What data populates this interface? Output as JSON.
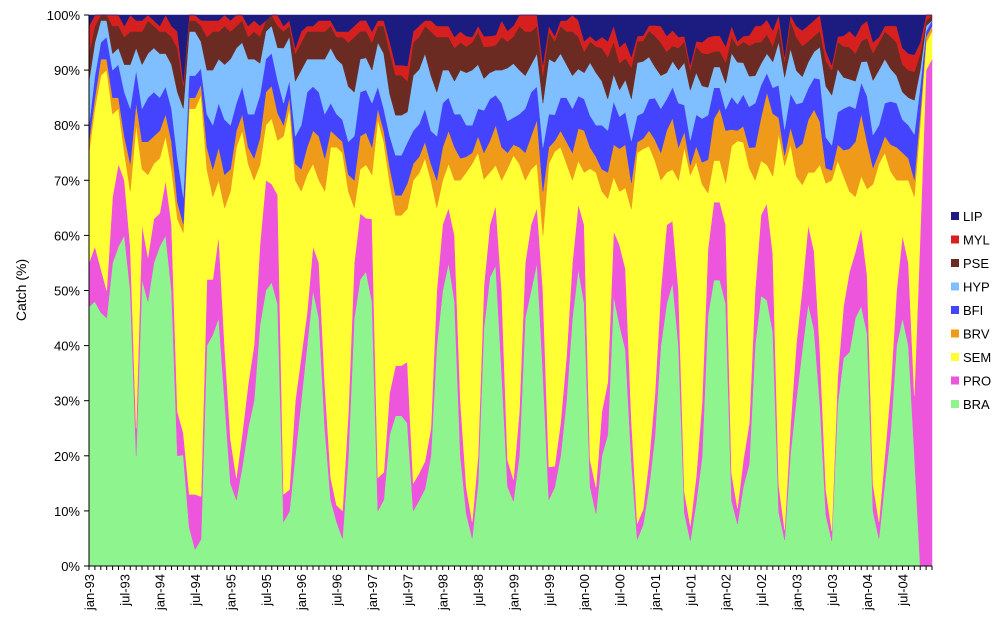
{
  "chart_data": {
    "type": "area",
    "stacking": "percent",
    "title": "",
    "xlabel": "",
    "ylabel": "Catch (%)",
    "ylim": [
      0,
      100
    ],
    "yticks": [
      "0%",
      "10%",
      "20%",
      "30%",
      "40%",
      "50%",
      "60%",
      "70%",
      "80%",
      "90%",
      "100%"
    ],
    "x_start": "jan-93",
    "x_end": "dec-04",
    "xticks": [
      "jan-93",
      "jul-93",
      "jan-94",
      "jul-94",
      "jan-95",
      "jul-95",
      "jan-96",
      "jul-96",
      "jan-97",
      "jul-97",
      "jan-98",
      "jul-98",
      "jan-99",
      "jul-99",
      "jan-00",
      "jul-00",
      "jan-01",
      "jul-01",
      "jan-02",
      "jul-02",
      "jan-03",
      "jul-03",
      "jan-04",
      "jul-04"
    ],
    "grid": false,
    "legend_position": "right",
    "legend_order": [
      "LIP",
      "MYL",
      "PSE",
      "HYP",
      "BFI",
      "BRV",
      "SEM",
      "PRO",
      "BRA"
    ],
    "series": [
      {
        "name": "BRA",
        "color": "#8EF58E",
        "values": [
          47,
          48,
          46,
          45,
          55,
          58,
          60,
          50,
          20,
          52,
          48,
          55,
          58,
          60,
          50,
          20,
          25,
          7,
          3,
          5,
          40,
          42,
          45,
          30,
          15,
          12,
          18,
          25,
          30,
          45,
          50,
          52,
          48,
          8,
          10,
          20,
          30,
          40,
          50,
          45,
          25,
          12,
          8,
          5,
          20,
          45,
          52,
          55,
          48,
          10,
          12,
          25,
          30,
          30,
          28,
          10,
          12,
          14,
          20,
          40,
          50,
          55,
          48,
          20,
          10,
          5,
          15,
          45,
          55,
          60,
          35,
          15,
          12,
          20,
          45,
          50,
          55,
          35,
          12,
          15,
          20,
          30,
          45,
          55,
          50,
          15,
          10,
          20,
          25,
          50,
          45,
          40,
          20,
          5,
          8,
          15,
          25,
          40,
          50,
          55,
          40,
          10,
          5,
          12,
          20,
          45,
          55,
          55,
          50,
          12,
          8,
          15,
          20,
          40,
          50,
          55,
          45,
          10,
          5,
          20,
          30,
          42,
          50,
          45,
          30,
          10,
          5,
          30,
          40,
          40,
          45,
          50,
          40,
          10,
          5,
          15,
          25,
          40,
          45,
          40,
          20,
          0,
          0,
          0
        ]
      },
      {
        "name": "PRO",
        "color": "#EE55DD",
        "values": [
          8,
          10,
          8,
          5,
          12,
          15,
          10,
          8,
          5,
          10,
          8,
          8,
          6,
          10,
          12,
          8,
          5,
          6,
          10,
          8,
          12,
          10,
          15,
          10,
          8,
          4,
          6,
          8,
          10,
          15,
          20,
          18,
          20,
          5,
          4,
          10,
          8,
          6,
          8,
          10,
          8,
          4,
          3,
          5,
          8,
          10,
          12,
          10,
          15,
          6,
          5,
          8,
          10,
          10,
          12,
          5,
          5,
          5,
          5,
          10,
          12,
          10,
          12,
          10,
          5,
          3,
          5,
          8,
          10,
          12,
          15,
          5,
          4,
          8,
          10,
          12,
          10,
          15,
          6,
          4,
          6,
          8,
          10,
          12,
          15,
          5,
          5,
          8,
          10,
          12,
          15,
          15,
          8,
          3,
          3,
          5,
          8,
          10,
          15,
          12,
          10,
          4,
          3,
          5,
          10,
          12,
          15,
          15,
          15,
          5,
          3,
          5,
          8,
          10,
          15,
          20,
          15,
          5,
          2,
          5,
          10,
          12,
          15,
          15,
          10,
          5,
          2,
          5,
          10,
          15,
          12,
          15,
          10,
          5,
          3,
          5,
          8,
          10,
          15,
          15,
          10,
          60,
          90,
          92
        ]
      },
      {
        "name": "SEM",
        "color": "#FFFF33",
        "values": [
          20,
          25,
          35,
          40,
          15,
          10,
          5,
          10,
          55,
          10,
          15,
          10,
          10,
          8,
          10,
          35,
          45,
          70,
          70,
          75,
          20,
          15,
          10,
          25,
          45,
          60,
          55,
          40,
          30,
          15,
          10,
          12,
          10,
          65,
          70,
          40,
          30,
          25,
          15,
          15,
          35,
          60,
          65,
          65,
          40,
          10,
          8,
          10,
          8,
          65,
          60,
          40,
          30,
          30,
          30,
          55,
          55,
          55,
          45,
          15,
          8,
          8,
          10,
          40,
          60,
          65,
          55,
          20,
          10,
          8,
          20,
          55,
          60,
          45,
          15,
          10,
          8,
          10,
          55,
          60,
          50,
          35,
          15,
          8,
          10,
          55,
          60,
          40,
          35,
          10,
          10,
          15,
          40,
          70,
          70,
          60,
          45,
          20,
          10,
          10,
          20,
          65,
          70,
          60,
          40,
          10,
          8,
          8,
          8,
          60,
          70,
          60,
          50,
          20,
          10,
          8,
          15,
          65,
          70,
          50,
          30,
          20,
          10,
          15,
          35,
          60,
          70,
          40,
          25,
          15,
          10,
          10,
          15,
          55,
          65,
          55,
          40,
          20,
          10,
          15,
          35,
          20,
          5,
          5
        ]
      },
      {
        "name": "BRV",
        "color": "#F09A1A",
        "values": [
          2,
          2,
          3,
          2,
          3,
          2,
          3,
          5,
          4,
          5,
          6,
          5,
          5,
          4,
          5,
          3,
          2,
          2,
          2,
          2,
          4,
          5,
          6,
          6,
          4,
          3,
          3,
          3,
          4,
          5,
          6,
          6,
          5,
          2,
          2,
          3,
          4,
          5,
          6,
          8,
          6,
          3,
          2,
          2,
          3,
          5,
          6,
          6,
          5,
          2,
          2,
          3,
          4,
          4,
          5,
          3,
          3,
          3,
          3,
          5,
          6,
          6,
          6,
          4,
          3,
          2,
          3,
          5,
          6,
          8,
          6,
          3,
          2,
          3,
          5,
          6,
          8,
          8,
          3,
          2,
          3,
          4,
          5,
          6,
          8,
          4,
          3,
          4,
          5,
          6,
          8,
          8,
          5,
          2,
          2,
          3,
          4,
          5,
          8,
          10,
          6,
          3,
          2,
          3,
          4,
          6,
          8,
          10,
          10,
          3,
          2,
          3,
          4,
          6,
          8,
          15,
          12,
          3,
          2,
          3,
          5,
          8,
          10,
          12,
          8,
          3,
          2,
          3,
          5,
          8,
          10,
          12,
          8,
          3,
          2,
          3,
          5,
          6,
          5,
          4,
          3,
          2,
          1,
          1
        ]
      },
      {
        "name": "BFI",
        "color": "#4444FF",
        "values": [
          3,
          4,
          3,
          4,
          5,
          6,
          8,
          10,
          6,
          6,
          8,
          8,
          6,
          5,
          6,
          8,
          6,
          4,
          4,
          3,
          6,
          8,
          8,
          10,
          8,
          5,
          5,
          6,
          8,
          8,
          6,
          6,
          6,
          4,
          3,
          5,
          8,
          10,
          8,
          8,
          8,
          5,
          4,
          4,
          6,
          8,
          8,
          8,
          8,
          4,
          4,
          6,
          8,
          8,
          8,
          6,
          6,
          6,
          6,
          8,
          8,
          6,
          6,
          8,
          6,
          5,
          5,
          8,
          8,
          6,
          8,
          6,
          5,
          6,
          8,
          8,
          6,
          8,
          6,
          5,
          6,
          8,
          8,
          6,
          6,
          6,
          6,
          8,
          8,
          8,
          6,
          6,
          8,
          5,
          5,
          6,
          8,
          8,
          6,
          6,
          8,
          5,
          5,
          6,
          8,
          8,
          6,
          4,
          4,
          6,
          5,
          6,
          8,
          8,
          6,
          4,
          5,
          6,
          5,
          6,
          8,
          8,
          6,
          6,
          8,
          6,
          5,
          6,
          8,
          8,
          6,
          6,
          8,
          6,
          5,
          6,
          8,
          8,
          6,
          6,
          8,
          5,
          1,
          1
        ]
      },
      {
        "name": "HYP",
        "color": "#7FBFFF",
        "values": [
          8,
          6,
          4,
          3,
          3,
          3,
          5,
          8,
          4,
          8,
          8,
          8,
          8,
          6,
          8,
          12,
          20,
          8,
          8,
          5,
          8,
          10,
          8,
          10,
          12,
          10,
          8,
          10,
          10,
          6,
          5,
          5,
          6,
          10,
          8,
          10,
          10,
          6,
          5,
          6,
          10,
          10,
          10,
          10,
          10,
          8,
          6,
          6,
          6,
          8,
          10,
          8,
          8,
          8,
          6,
          10,
          10,
          10,
          10,
          8,
          6,
          5,
          6,
          8,
          10,
          10,
          8,
          6,
          5,
          5,
          6,
          10,
          10,
          8,
          6,
          5,
          6,
          8,
          10,
          10,
          8,
          6,
          6,
          5,
          5,
          10,
          10,
          8,
          6,
          5,
          5,
          6,
          8,
          10,
          10,
          8,
          6,
          6,
          5,
          5,
          6,
          8,
          10,
          8,
          6,
          5,
          4,
          4,
          5,
          8,
          8,
          6,
          6,
          5,
          4,
          4,
          5,
          8,
          10,
          8,
          6,
          5,
          5,
          5,
          6,
          10,
          10,
          8,
          6,
          5,
          5,
          4,
          6,
          10,
          10,
          8,
          6,
          5,
          5,
          5,
          6,
          3,
          1,
          0
        ]
      },
      {
        "name": "PSE",
        "color": "#6B2B22",
        "values": [
          5,
          3,
          1,
          1,
          5,
          4,
          5,
          6,
          3,
          6,
          6,
          4,
          4,
          4,
          5,
          8,
          5,
          2,
          2,
          3,
          6,
          7,
          5,
          7,
          5,
          4,
          4,
          4,
          5,
          5,
          2,
          2,
          4,
          3,
          2,
          5,
          5,
          5,
          5,
          5,
          5,
          4,
          4,
          5,
          8,
          10,
          5,
          5,
          5,
          3,
          5,
          8,
          8,
          8,
          6,
          6,
          6,
          5,
          8,
          10,
          6,
          6,
          6,
          5,
          5,
          5,
          6,
          6,
          5,
          5,
          6,
          5,
          5,
          8,
          8,
          6,
          5,
          5,
          5,
          4,
          5,
          6,
          8,
          6,
          4,
          4,
          5,
          6,
          8,
          6,
          5,
          4,
          6,
          4,
          4,
          5,
          6,
          6,
          4,
          3,
          4,
          4,
          4,
          5,
          6,
          6,
          3,
          3,
          4,
          3,
          3,
          4,
          6,
          6,
          4,
          4,
          3,
          3,
          3,
          5,
          6,
          6,
          4,
          3,
          3,
          5,
          5,
          5,
          6,
          6,
          5,
          4,
          4,
          5,
          5,
          5,
          6,
          6,
          5,
          5,
          5,
          3,
          1,
          1
        ]
      },
      {
        "name": "MYL",
        "color": "#D62020",
        "values": [
          5,
          2,
          0,
          0,
          2,
          2,
          2,
          3,
          2,
          2,
          1,
          1,
          1,
          3,
          2,
          3,
          1,
          1,
          1,
          1,
          3,
          2,
          2,
          2,
          2,
          2,
          1,
          2,
          2,
          2,
          0,
          0,
          2,
          1,
          1,
          1,
          2,
          1,
          1,
          2,
          2,
          1,
          1,
          1,
          2,
          2,
          2,
          2,
          2,
          1,
          1,
          2,
          2,
          2,
          3,
          2,
          2,
          1,
          2,
          2,
          2,
          2,
          2,
          2,
          2,
          1,
          1,
          2,
          2,
          2,
          3,
          2,
          2,
          2,
          3,
          3,
          2,
          2,
          1,
          1,
          1,
          2,
          3,
          3,
          2,
          1,
          1,
          2,
          3,
          3,
          3,
          3,
          2,
          1,
          1,
          1,
          2,
          3,
          3,
          3,
          2,
          1,
          1,
          1,
          2,
          3,
          3,
          3,
          3,
          2,
          1,
          1,
          2,
          3,
          3,
          3,
          3,
          2,
          1,
          1,
          2,
          3,
          3,
          3,
          3,
          2,
          1,
          1,
          2,
          3,
          3,
          3,
          3,
          2,
          1,
          1,
          2,
          3,
          3,
          3,
          3,
          2,
          1,
          0
        ]
      },
      {
        "name": "LIP",
        "color": "#1C1C80",
        "values": [
          2,
          0,
          0,
          0,
          0,
          0,
          2,
          0,
          1,
          1,
          0,
          1,
          2,
          0,
          2,
          3,
          15,
          0,
          0,
          1,
          1,
          1,
          1,
          0,
          1,
          0,
          0,
          2,
          1,
          2,
          1,
          0,
          0,
          2,
          1,
          6,
          3,
          2,
          2,
          1,
          1,
          1,
          3,
          3,
          3,
          2,
          1,
          1,
          3,
          1,
          1,
          5,
          10,
          10,
          10,
          3,
          2,
          1,
          1,
          2,
          2,
          2,
          4,
          3,
          4,
          4,
          2,
          4,
          4,
          4,
          1,
          3,
          2,
          0,
          0,
          0,
          0,
          9,
          2,
          4,
          1,
          1,
          0,
          1,
          5,
          4,
          5,
          4,
          5,
          2,
          6,
          5,
          8,
          4,
          4,
          2,
          2,
          2,
          4,
          3,
          4,
          4,
          10,
          5,
          5,
          4,
          4,
          4,
          6,
          2,
          5,
          4,
          4,
          2,
          2,
          1,
          3,
          0,
          8,
          0,
          2,
          3,
          2,
          1,
          0,
          7,
          10,
          4,
          4,
          3,
          4,
          2,
          1,
          5,
          4,
          2,
          2,
          2,
          6,
          7,
          7,
          5,
          0,
          0
        ]
      }
    ]
  }
}
